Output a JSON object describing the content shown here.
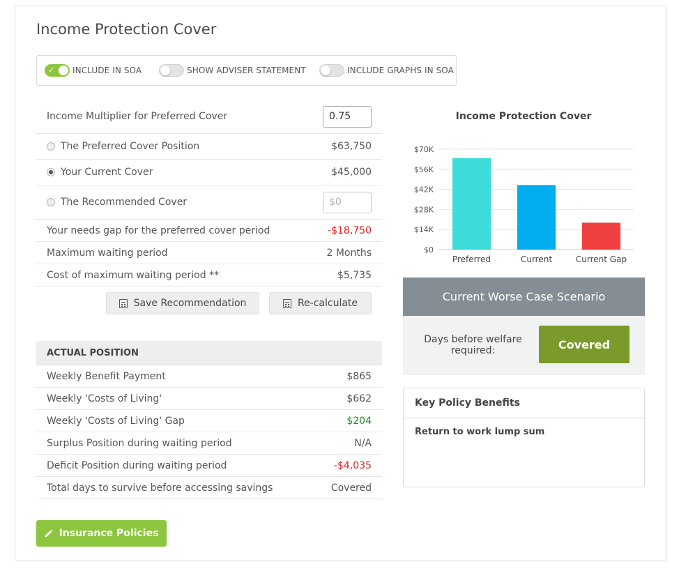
{
  "page": {
    "title": "Income Protection Cover"
  },
  "toggles": [
    {
      "label": "INCLUDE IN SOA",
      "on": true
    },
    {
      "label": "SHOW ADVISER STATEMENT",
      "on": false
    },
    {
      "label": "INCLUDE GRAPHS IN SOA",
      "on": false
    }
  ],
  "cover": {
    "multiplier_label": "Income Multiplier for Preferred Cover",
    "multiplier_value": "0.75",
    "preferred_label": "The Preferred Cover Position",
    "preferred_value": "$63,750",
    "current_label": "Your Current Cover",
    "current_value": "$45,000",
    "recommended_label": "The Recommended Cover",
    "recommended_placeholder": "$0",
    "needs_gap_label": "Your needs gap for the preferred cover period",
    "needs_gap_value": "-$18,750",
    "max_wait_label": "Maximum waiting period",
    "max_wait_value": "2 Months",
    "cost_wait_label": "Cost of maximum waiting period **",
    "cost_wait_value": "$5,735",
    "selected_option": "current"
  },
  "buttons": {
    "save": "Save Recommendation",
    "recalc": "Re-calculate",
    "insurance": "Insurance Policies"
  },
  "actual": {
    "header": "ACTUAL POSITION",
    "rows": [
      {
        "label": "Weekly Benefit Payment",
        "value": "$865",
        "tone": "normal"
      },
      {
        "label": "Weekly 'Costs of Living'",
        "value": "$662",
        "tone": "normal"
      },
      {
        "label": "Weekly 'Costs of Living' Gap",
        "value": "$204",
        "tone": "pos"
      },
      {
        "label": "Surplus Position during waiting period",
        "value": "N/A",
        "tone": "normal"
      },
      {
        "label": "Deficit Position during waiting period",
        "value": "-$4,035",
        "tone": "neg"
      },
      {
        "label": "Total days to survive before accessing savings",
        "value": "Covered",
        "tone": "normal"
      }
    ]
  },
  "chart_data": {
    "type": "bar",
    "title": "Income Protection Cover",
    "categories": [
      "Preferred",
      "Current",
      "Current Gap"
    ],
    "values": [
      63750,
      45000,
      18750
    ],
    "colors": [
      "#3ddbd9",
      "#00aeef",
      "#f04040"
    ],
    "ylim": [
      0,
      70000
    ],
    "yticks": [
      0,
      14000,
      28000,
      42000,
      56000,
      70000
    ],
    "ytick_labels": [
      "$0",
      "$14K",
      "$28K",
      "$42K",
      "$56K",
      "$70K"
    ],
    "grid": true
  },
  "scenario": {
    "header": "Current Worse Case Scenario",
    "label": "Days before welfare required:",
    "status": "Covered",
    "status_color": "#7a9b2c"
  },
  "benefits": {
    "header": "Key Policy Benefits",
    "items": [
      "Return to work lump sum"
    ]
  },
  "colors": {
    "accent_green": "#8cc63f",
    "negative": "#e02020",
    "positive": "#2a8a2a"
  }
}
